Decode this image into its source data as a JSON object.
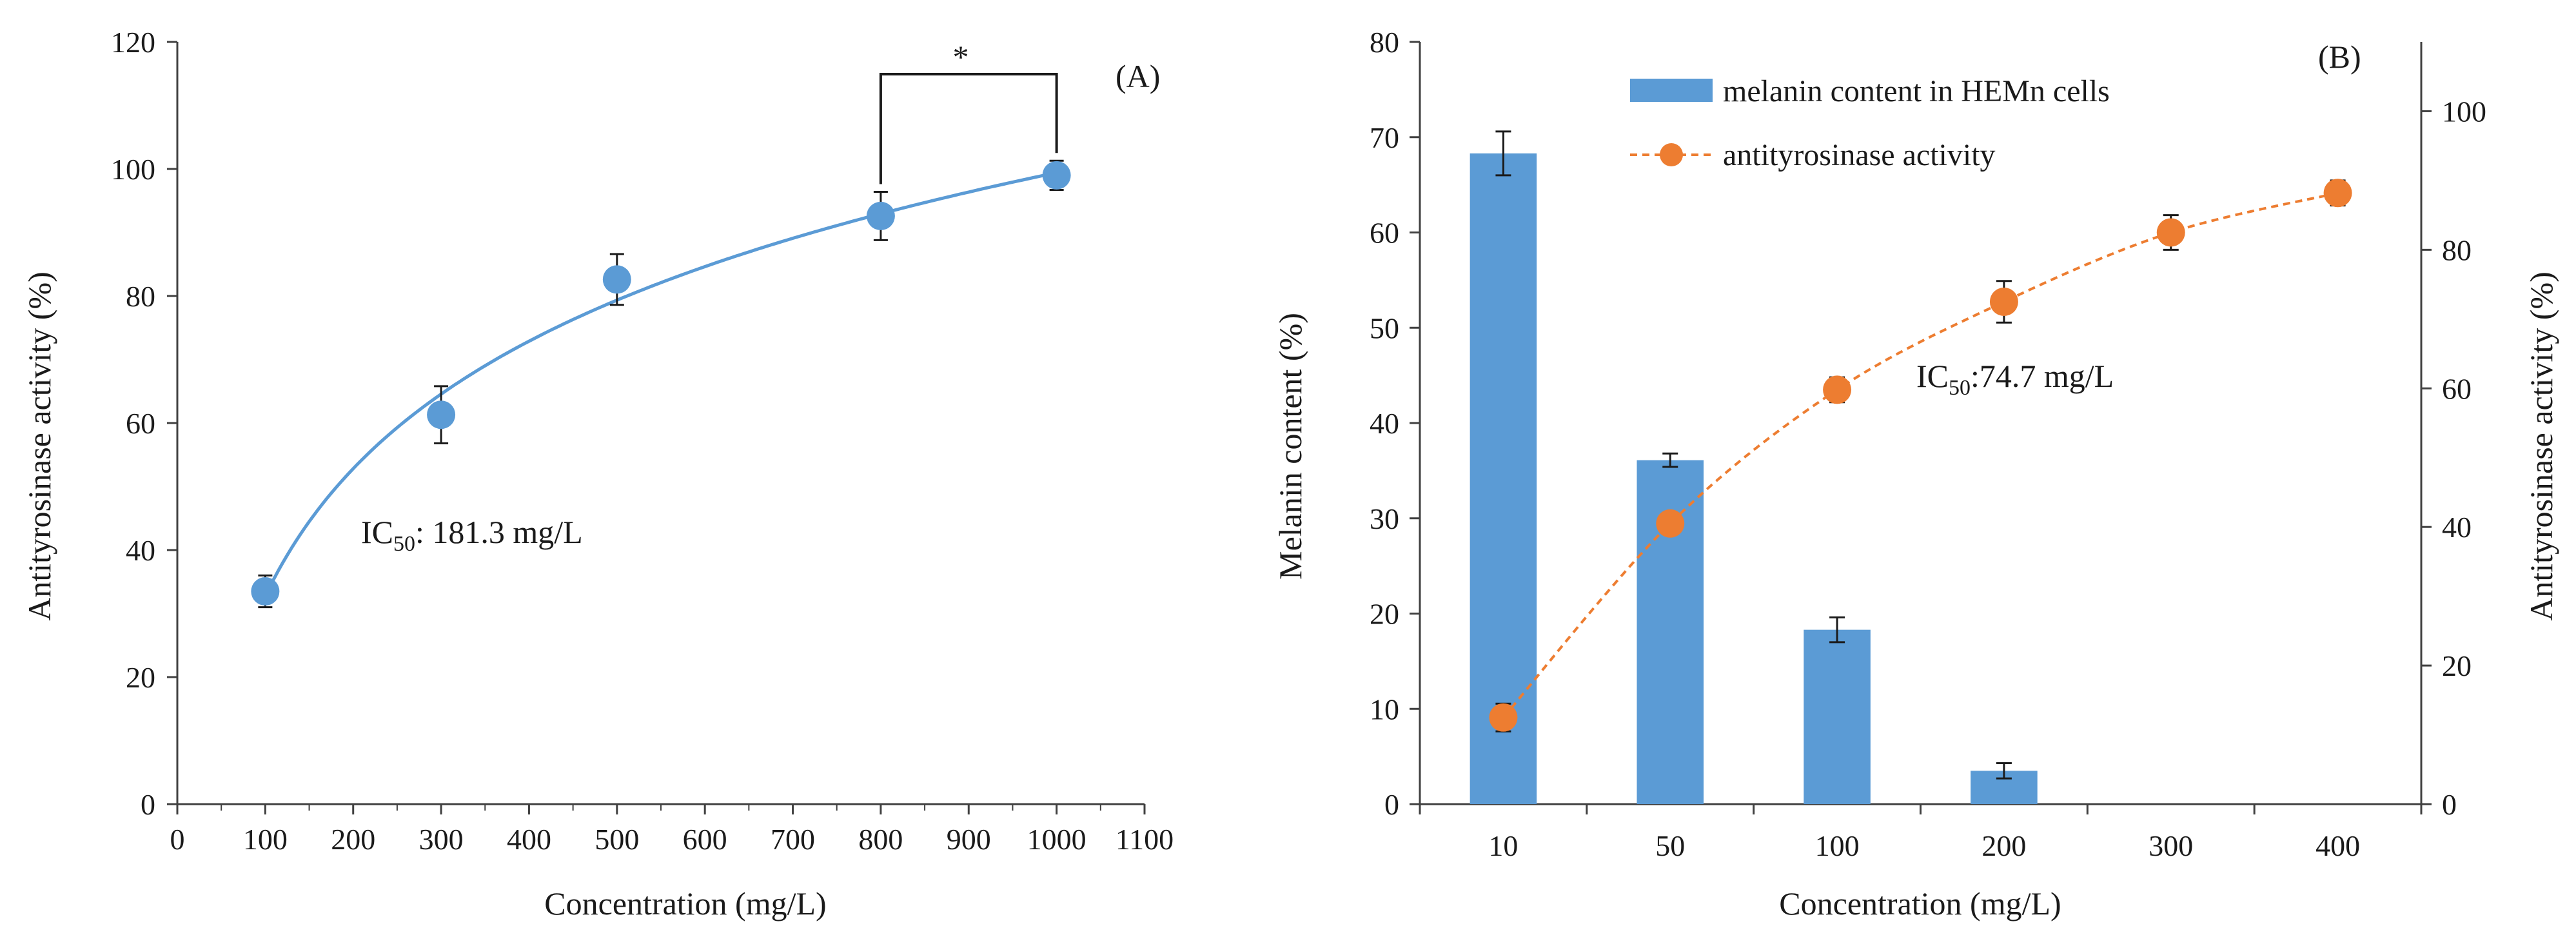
{
  "colors": {
    "blue": "#5b9bd5",
    "orange": "#ed7d31",
    "axis": "#404040",
    "text": "#1a1a1a"
  },
  "chart_data": [
    {
      "id": "A",
      "type": "scatter",
      "panel_label": "(A)",
      "xlabel": "Concentration (mg/L)",
      "ylabel": "Antityrosinase activity  (%)",
      "xlim": [
        0,
        1100
      ],
      "ylim": [
        0,
        120
      ],
      "x_ticks": [
        "0",
        "100",
        "200",
        "300",
        "400",
        "500",
        "600",
        "700",
        "800",
        "900",
        "1000",
        "1100"
      ],
      "y_ticks": [
        "0",
        "20",
        "40",
        "60",
        "80",
        "100",
        "120"
      ],
      "series": [
        {
          "name": "antityrosinase activity",
          "x": [
            100,
            300,
            500,
            800,
            1000
          ],
          "y": [
            33.5,
            61.3,
            82.6,
            92.6,
            99.0
          ],
          "err": [
            2.5,
            4.5,
            4.0,
            3.8,
            2.3
          ],
          "trendline": "logarithmic"
        }
      ],
      "annotations": {
        "ic50_prefix": "IC",
        "ic50_sub": "50",
        "ic50_value": ": 181.3 mg/L",
        "significance": "*",
        "significance_between": [
          800,
          1000
        ]
      }
    },
    {
      "id": "B",
      "type": "bar",
      "panel_label": "(B)",
      "categories": [
        "10",
        "50",
        "100",
        "200",
        "300",
        "400"
      ],
      "xlabel": "Concentration (mg/L)",
      "ylabel_left": "Melanin content (%)",
      "ylabel_right": "Antityrosinase activity  (%)",
      "ylim_left": [
        0,
        80
      ],
      "ylim_right": [
        0,
        110
      ],
      "y_ticks_left": [
        "0",
        "10",
        "20",
        "30",
        "40",
        "50",
        "60",
        "70",
        "80"
      ],
      "y_ticks_right": [
        "0",
        "20",
        "40",
        "60",
        "80",
        "100"
      ],
      "series": [
        {
          "name": "melanin content in HEMn cells",
          "type": "bar",
          "axis": "left",
          "values": [
            68.3,
            36.1,
            18.3,
            3.5,
            null,
            null
          ],
          "err": [
            2.3,
            0.7,
            1.3,
            0.8,
            null,
            null
          ]
        },
        {
          "name": "antityrosinase activity",
          "type": "line",
          "axis": "right",
          "style": "dashed",
          "values": [
            12.5,
            40.5,
            59.8,
            72.5,
            82.5,
            88.2
          ],
          "err": [
            2.0,
            0,
            1.8,
            3.0,
            2.5,
            1.8
          ]
        }
      ],
      "annotations": {
        "ic50_prefix": "IC",
        "ic50_sub": "50",
        "ic50_value": ":74.7 mg/L"
      }
    }
  ]
}
